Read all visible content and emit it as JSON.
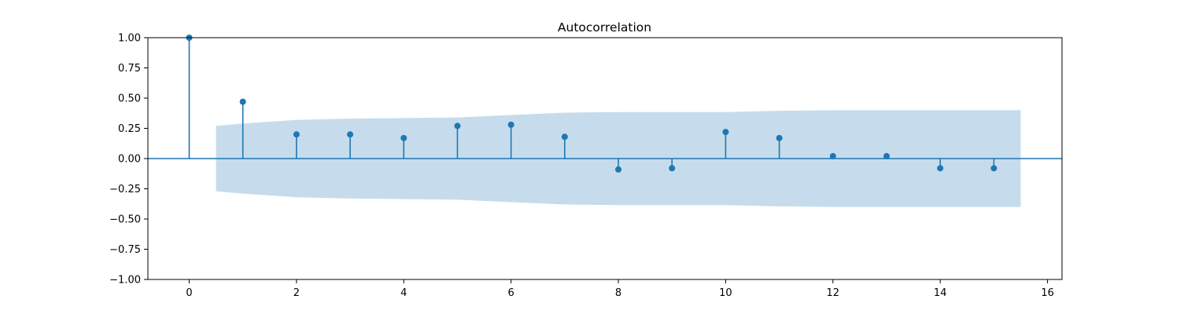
{
  "chart_data": {
    "type": "stem",
    "title": "Autocorrelation",
    "xlabel": "",
    "ylabel": "",
    "xlim": [
      -0.77,
      16.27
    ],
    "ylim": [
      -1.0,
      1.0
    ],
    "x_ticks": [
      0,
      2,
      4,
      6,
      8,
      10,
      12,
      14,
      16
    ],
    "x_tick_labels": [
      "0",
      "2",
      "4",
      "6",
      "8",
      "10",
      "12",
      "14",
      "16"
    ],
    "y_ticks": [
      -1.0,
      -0.75,
      -0.5,
      -0.25,
      0.0,
      0.25,
      0.5,
      0.75,
      1.0
    ],
    "y_tick_labels": [
      "−1.00",
      "−0.75",
      "−0.50",
      "−0.25",
      "0.00",
      "0.25",
      "0.50",
      "0.75",
      "1.00"
    ],
    "series": [
      {
        "name": "autocorrelation",
        "lags": [
          0,
          1,
          2,
          3,
          4,
          5,
          6,
          7,
          8,
          9,
          10,
          11,
          12,
          13,
          14,
          15
        ],
        "values": [
          1.0,
          0.47,
          0.2,
          0.2,
          0.17,
          0.27,
          0.28,
          0.18,
          -0.09,
          -0.08,
          0.22,
          0.17,
          0.02,
          0.02,
          -0.08,
          -0.08
        ]
      }
    ],
    "confidence_band": {
      "lags": [
        0.5,
        1,
        2,
        3,
        4,
        5,
        6,
        7,
        8,
        9,
        10,
        11,
        12,
        13,
        14,
        15,
        15.5
      ],
      "upper": [
        0.27,
        0.29,
        0.32,
        0.33,
        0.335,
        0.34,
        0.36,
        0.38,
        0.385,
        0.385,
        0.385,
        0.395,
        0.4,
        0.4,
        0.4,
        0.4,
        0.4
      ]
    },
    "grid": false,
    "colors": {
      "stem": "#1f77b4",
      "band": "#c6dcec"
    }
  }
}
